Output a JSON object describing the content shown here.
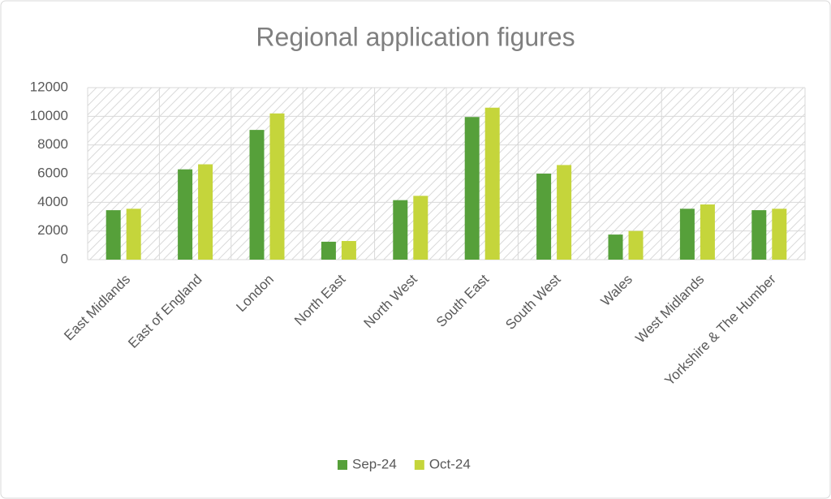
{
  "chart_data": {
    "type": "bar",
    "title": "Regional application figures",
    "categories": [
      "East Midlands",
      "East of England",
      "London",
      "North East",
      "North West",
      "South East",
      "South West",
      "Wales",
      "West Midlands",
      "Yorkshire & The Humber"
    ],
    "series": [
      {
        "name": "Sep-24",
        "color": "#56a03a",
        "values": [
          3450,
          6300,
          9050,
          1250,
          4150,
          9950,
          6000,
          1750,
          3550,
          3450
        ]
      },
      {
        "name": "Oct-24",
        "color": "#c5d53b",
        "values": [
          3550,
          6650,
          10200,
          1300,
          4450,
          10600,
          6600,
          2000,
          3850,
          3550
        ]
      }
    ],
    "ylim": [
      0,
      12000
    ],
    "yticks": [
      0,
      2000,
      4000,
      6000,
      8000,
      10000,
      12000
    ],
    "grid": true,
    "legend": "bottom"
  }
}
